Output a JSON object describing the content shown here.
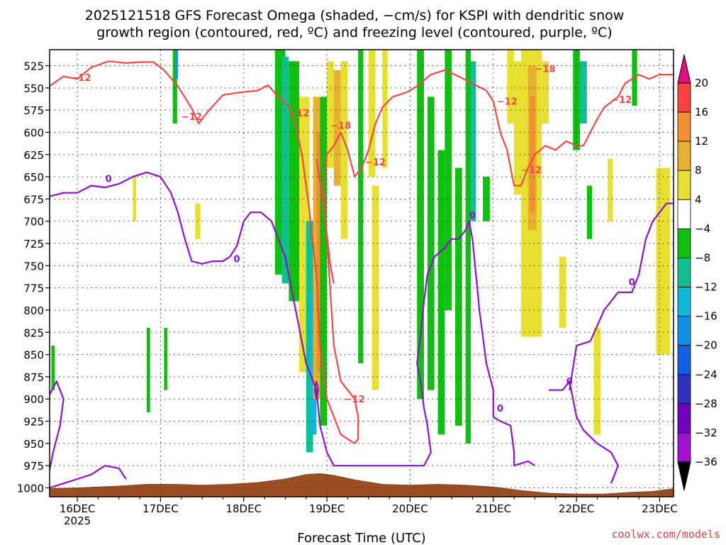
{
  "chart_data": {
    "type": "heatmap",
    "title_line1": "2025121518 GFS Forecast Omega (shaded, −cm/s) for KSPI with dendritic snow",
    "title_line2": "growth region (contoured, red, ºC) and freezing level (contoured, purple, ºC)",
    "xlabel": "Forecast Time (UTC)",
    "ylabel": "",
    "x_range_hours": [
      -8,
      172
    ],
    "x_ticks": [
      {
        "hour": 0,
        "label": "16DEC",
        "sub": "2025"
      },
      {
        "hour": 24,
        "label": "17DEC",
        "sub": ""
      },
      {
        "hour": 48,
        "label": "18DEC",
        "sub": ""
      },
      {
        "hour": 72,
        "label": "19DEC",
        "sub": ""
      },
      {
        "hour": 96,
        "label": "20DEC",
        "sub": ""
      },
      {
        "hour": 120,
        "label": "21DEC",
        "sub": ""
      },
      {
        "hour": 144,
        "label": "22DEC",
        "sub": ""
      },
      {
        "hour": 168,
        "label": "23DEC",
        "sub": ""
      }
    ],
    "y_range_hPa": [
      1010,
      507
    ],
    "y_ticks": [
      525,
      550,
      575,
      600,
      625,
      650,
      675,
      700,
      725,
      750,
      775,
      800,
      825,
      850,
      875,
      900,
      925,
      950,
      975,
      1000
    ],
    "colorbar": {
      "labels": [
        "20",
        "16",
        "12",
        "8",
        "4",
        "−4",
        "−8",
        "−12",
        "−16",
        "−20",
        "−24",
        "−28",
        "−32",
        "−36"
      ],
      "colors": [
        "#ff4040",
        "#f09030",
        "#e8b030",
        "#e8e030",
        "#ffffff",
        "#10c010",
        "#10c090",
        "#10b8d8",
        "#1090e8",
        "#1060e8",
        "#3030c0",
        "#7000c0",
        "#a010d0",
        "#a0a0a0"
      ],
      "top_color": "#e01080",
      "bottom_color": "#000000"
    },
    "omega_colors": {
      "w4": "#e8e030",
      "w8": "#e8b030",
      "w12": "#f09030",
      "c4": "#10c010",
      "c8": "#10c090",
      "c12": "#10b8d8",
      "c16": "#1090e8"
    },
    "omega_cells": [
      {
        "t0": 57,
        "t1": 60,
        "p0": 507,
        "p1": 760,
        "cls": "c4"
      },
      {
        "t0": 59,
        "t1": 61,
        "p0": 515,
        "p1": 770,
        "cls": "c8"
      },
      {
        "t0": 61,
        "t1": 64,
        "p0": 520,
        "p1": 790,
        "cls": "c4"
      },
      {
        "t0": 64,
        "t1": 67,
        "p0": 560,
        "p1": 870,
        "cls": "w4"
      },
      {
        "t0": 66,
        "t1": 68,
        "p0": 700,
        "p1": 960,
        "cls": "c8"
      },
      {
        "t0": 67,
        "t1": 69,
        "p0": 780,
        "p1": 940,
        "cls": "c12"
      },
      {
        "t0": 68,
        "t1": 70,
        "p0": 560,
        "p1": 900,
        "cls": "w8"
      },
      {
        "t0": 69,
        "t1": 70.5,
        "p0": 600,
        "p1": 870,
        "cls": "w12"
      },
      {
        "t0": 70,
        "t1": 72,
        "p0": 560,
        "p1": 930,
        "cls": "c4"
      },
      {
        "t0": 72,
        "t1": 74,
        "p0": 520,
        "p1": 640,
        "cls": "w4"
      },
      {
        "t0": 74,
        "t1": 76,
        "p0": 530,
        "p1": 660,
        "cls": "w8"
      },
      {
        "t0": 76,
        "t1": 78,
        "p0": 520,
        "p1": 720,
        "cls": "w4"
      },
      {
        "t0": 81,
        "t1": 82.5,
        "p0": 507,
        "p1": 860,
        "cls": "c4"
      },
      {
        "t0": 84,
        "t1": 86,
        "p0": 507,
        "p1": 650,
        "cls": "w4"
      },
      {
        "t0": 85,
        "t1": 87,
        "p0": 660,
        "p1": 890,
        "cls": "w4"
      },
      {
        "t0": 88,
        "t1": 89.5,
        "p0": 507,
        "p1": 640,
        "cls": "w4"
      },
      {
        "t0": 98,
        "t1": 100,
        "p0": 507,
        "p1": 900,
        "cls": "c4"
      },
      {
        "t0": 101,
        "t1": 103,
        "p0": 560,
        "p1": 890,
        "cls": "c4"
      },
      {
        "t0": 104,
        "t1": 106,
        "p0": 620,
        "p1": 940,
        "cls": "c4"
      },
      {
        "t0": 106,
        "t1": 108,
        "p0": 507,
        "p1": 800,
        "cls": "c4"
      },
      {
        "t0": 109,
        "t1": 111,
        "p0": 640,
        "p1": 930,
        "cls": "c4"
      },
      {
        "t0": 112,
        "t1": 113.5,
        "p0": 507,
        "p1": 950,
        "cls": "c4"
      },
      {
        "t0": 113.5,
        "t1": 115,
        "p0": 520,
        "p1": 700,
        "cls": "c8"
      },
      {
        "t0": 117,
        "t1": 119,
        "p0": 650,
        "p1": 700,
        "cls": "c4"
      },
      {
        "t0": 124,
        "t1": 126,
        "p0": 507,
        "p1": 590,
        "cls": "w4"
      },
      {
        "t0": 126,
        "t1": 128,
        "p0": 520,
        "p1": 670,
        "cls": "w4"
      },
      {
        "t0": 128,
        "t1": 134,
        "p0": 507,
        "p1": 830,
        "cls": "w4"
      },
      {
        "t0": 130,
        "t1": 132.5,
        "p0": 525,
        "p1": 710,
        "cls": "w8"
      },
      {
        "t0": 130.5,
        "t1": 132,
        "p0": 560,
        "p1": 690,
        "cls": "w12"
      },
      {
        "t0": 134,
        "t1": 136,
        "p0": 520,
        "p1": 590,
        "cls": "w4"
      },
      {
        "t0": 139,
        "t1": 141,
        "p0": 740,
        "p1": 820,
        "cls": "w4"
      },
      {
        "t0": 143,
        "t1": 145,
        "p0": 507,
        "p1": 620,
        "cls": "c4"
      },
      {
        "t0": 145,
        "t1": 147,
        "p0": 520,
        "p1": 590,
        "cls": "c8"
      },
      {
        "t0": 147,
        "t1": 148.5,
        "p0": 660,
        "p1": 720,
        "cls": "c4"
      },
      {
        "t0": 149,
        "t1": 151,
        "p0": 820,
        "p1": 940,
        "cls": "w4"
      },
      {
        "t0": 153,
        "t1": 154.5,
        "p0": 630,
        "p1": 700,
        "cls": "w4"
      },
      {
        "t0": 160,
        "t1": 161.5,
        "p0": 507,
        "p1": 570,
        "cls": "c4"
      },
      {
        "t0": 167,
        "t1": 171,
        "p0": 640,
        "p1": 850,
        "cls": "w4"
      },
      {
        "t0": 27.5,
        "t1": 28.8,
        "p0": 507,
        "p1": 590,
        "cls": "c4"
      },
      {
        "t0": 28.2,
        "t1": 29,
        "p0": 507,
        "p1": 540,
        "cls": "c16"
      },
      {
        "t0": 34,
        "t1": 35.5,
        "p0": 680,
        "p1": 720,
        "cls": "w4"
      },
      {
        "t0": 25,
        "t1": 26,
        "p0": 820,
        "p1": 890,
        "cls": "c4"
      },
      {
        "t0": 20,
        "t1": 21,
        "p0": 820,
        "p1": 915,
        "cls": "c4"
      },
      {
        "t0": 16,
        "t1": 17,
        "p0": 650,
        "p1": 700,
        "cls": "w4"
      },
      {
        "t0": -7.5,
        "t1": -6.5,
        "p0": 840,
        "p1": 890,
        "cls": "c4"
      }
    ],
    "dgz_minus12_contours": [
      [
        [
          -8,
          548
        ],
        [
          -4,
          537
        ],
        [
          0,
          540
        ],
        [
          4,
          527
        ],
        [
          9,
          520
        ],
        [
          14,
          522
        ],
        [
          18,
          521
        ],
        [
          22,
          521
        ],
        [
          25,
          530
        ],
        [
          29,
          548
        ],
        [
          33,
          573
        ],
        [
          35,
          590
        ],
        [
          38,
          575
        ],
        [
          42,
          558
        ],
        [
          47,
          555
        ],
        [
          52,
          553
        ],
        [
          55,
          547
        ],
        [
          58,
          560
        ],
        [
          61,
          570
        ],
        [
          63,
          590
        ],
        [
          65,
          630
        ],
        [
          67,
          690
        ],
        [
          69,
          760
        ],
        [
          70,
          840
        ],
        [
          72,
          900
        ],
        [
          76,
          940
        ],
        [
          80,
          950
        ],
        [
          81,
          945
        ],
        [
          81,
          920
        ],
        [
          80,
          900
        ],
        [
          76,
          880
        ],
        [
          74,
          840
        ],
        [
          73,
          780
        ],
        [
          72,
          720
        ],
        [
          71,
          660
        ],
        [
          72,
          625
        ],
        [
          74,
          615
        ],
        [
          76,
          600
        ],
        [
          78,
          620
        ],
        [
          80,
          650
        ],
        [
          82,
          640
        ],
        [
          84,
          620
        ],
        [
          86,
          590
        ],
        [
          88,
          572
        ],
        [
          91,
          560
        ],
        [
          95,
          555
        ],
        [
          98,
          548
        ],
        [
          102,
          535
        ],
        [
          106,
          530
        ],
        [
          110,
          537
        ],
        [
          114,
          545
        ],
        [
          118,
          553
        ],
        [
          120,
          565
        ],
        [
          122,
          600
        ],
        [
          124,
          620
        ],
        [
          126,
          660
        ],
        [
          128,
          660
        ],
        [
          130,
          640
        ],
        [
          132,
          625
        ],
        [
          135,
          615
        ],
        [
          138,
          620
        ],
        [
          141,
          610
        ],
        [
          144,
          615
        ],
        [
          146,
          615
        ],
        [
          148,
          600
        ],
        [
          150,
          585
        ],
        [
          152,
          572
        ],
        [
          156,
          560
        ],
        [
          158,
          545
        ],
        [
          162,
          535
        ],
        [
          165,
          540
        ],
        [
          168,
          535
        ],
        [
          172,
          535
        ]
      ],
      [
        [
          69,
          630
        ],
        [
          71,
          680
        ],
        [
          73,
          750
        ],
        [
          74,
          770
        ]
      ]
    ],
    "freezing_contours": [
      [
        [
          -8,
          672
        ],
        [
          -4,
          668
        ],
        [
          0,
          668
        ],
        [
          4,
          660
        ],
        [
          8,
          662
        ],
        [
          12,
          658
        ],
        [
          16,
          650
        ],
        [
          20,
          645
        ],
        [
          24,
          650
        ],
        [
          27,
          668
        ],
        [
          29,
          690
        ],
        [
          31,
          720
        ],
        [
          33,
          745
        ],
        [
          36,
          748
        ],
        [
          39,
          745
        ],
        [
          42,
          745
        ],
        [
          44,
          740
        ],
        [
          46,
          728
        ],
        [
          48,
          700
        ],
        [
          50,
          690
        ],
        [
          53,
          690
        ],
        [
          56,
          700
        ],
        [
          58,
          720
        ],
        [
          60,
          740
        ],
        [
          62,
          780
        ],
        [
          64,
          820
        ],
        [
          66,
          860
        ],
        [
          68,
          880
        ],
        [
          69,
          890
        ],
        [
          70,
          930
        ],
        [
          72,
          960
        ],
        [
          74,
          975
        ],
        [
          80,
          975
        ],
        [
          86,
          975
        ],
        [
          92,
          975
        ],
        [
          96,
          975
        ],
        [
          100,
          975
        ],
        [
          102,
          960
        ],
        [
          101,
          930
        ],
        [
          100,
          910
        ],
        [
          99,
          880
        ],
        [
          98,
          860
        ],
        [
          99,
          830
        ],
        [
          100,
          790
        ],
        [
          101,
          760
        ],
        [
          103,
          740
        ],
        [
          106,
          730
        ],
        [
          108,
          720
        ],
        [
          110,
          720
        ],
        [
          112,
          710
        ],
        [
          113,
          700
        ],
        [
          114,
          720
        ],
        [
          115,
          760
        ],
        [
          116,
          800
        ],
        [
          117,
          830
        ],
        [
          118,
          860
        ],
        [
          120,
          890
        ],
        [
          120,
          920
        ],
        [
          122,
          925
        ],
        [
          125,
          930
        ],
        [
          126,
          960
        ],
        [
          126,
          975
        ],
        [
          130,
          970
        ],
        [
          132,
          975
        ]
      ],
      [
        [
          -8,
          1000
        ],
        [
          -4,
          995
        ],
        [
          0,
          990
        ],
        [
          4,
          985
        ],
        [
          8,
          975
        ],
        [
          12,
          978
        ],
        [
          14,
          990
        ]
      ],
      [
        [
          -8,
          895
        ],
        [
          -6,
          880
        ],
        [
          -4,
          900
        ],
        [
          -5,
          930
        ],
        [
          -7,
          960
        ],
        [
          -8,
          980
        ]
      ],
      [
        [
          142,
          890
        ],
        [
          144,
          840
        ],
        [
          148,
          835
        ],
        [
          152,
          800
        ],
        [
          156,
          780
        ],
        [
          160,
          780
        ],
        [
          162,
          760
        ],
        [
          164,
          720
        ],
        [
          166,
          700
        ],
        [
          168,
          690
        ],
        [
          170,
          680
        ],
        [
          172,
          680
        ]
      ],
      [
        [
          136,
          890
        ],
        [
          140,
          890
        ],
        [
          142,
          880
        ],
        [
          144,
          920
        ],
        [
          146,
          935
        ],
        [
          150,
          950
        ],
        [
          154,
          960
        ],
        [
          156,
          975
        ],
        [
          154,
          995
        ]
      ],
      [
        [
          69,
          880
        ],
        [
          69.5,
          890
        ],
        [
          69,
          900
        ],
        [
          68.5,
          890
        ],
        [
          69,
          880
        ]
      ]
    ],
    "dgz_labels": [
      {
        "t": 1,
        "p": 538,
        "text": "−12"
      },
      {
        "t": 33,
        "p": 582,
        "text": "−12"
      },
      {
        "t": 64,
        "p": 578,
        "text": "−12"
      },
      {
        "t": 76,
        "p": 592,
        "text": "−18"
      },
      {
        "t": 86,
        "p": 633,
        "text": "−12"
      },
      {
        "t": 124,
        "p": 565,
        "text": "−12"
      },
      {
        "t": 135,
        "p": 528,
        "text": "−18"
      },
      {
        "t": 131,
        "p": 642,
        "text": "−12"
      },
      {
        "t": 157,
        "p": 563,
        "text": "−12"
      },
      {
        "t": 80,
        "p": 900,
        "text": "−12"
      }
    ],
    "freezing_labels": [
      {
        "t": 9,
        "p": 652,
        "text": "0"
      },
      {
        "t": 46,
        "p": 742,
        "text": "0"
      },
      {
        "t": 114,
        "p": 693,
        "text": "0"
      },
      {
        "t": 122,
        "p": 910,
        "text": "0"
      },
      {
        "t": 160,
        "p": 768,
        "text": "0"
      },
      {
        "t": 142,
        "p": 880,
        "text": "0"
      }
    ],
    "surface_pressure": [
      [
        -8,
        1001
      ],
      [
        0,
        1000
      ],
      [
        12,
        998
      ],
      [
        20,
        996
      ],
      [
        28,
        996
      ],
      [
        36,
        997
      ],
      [
        44,
        996
      ],
      [
        52,
        994
      ],
      [
        60,
        990
      ],
      [
        66,
        985
      ],
      [
        70,
        984
      ],
      [
        74,
        986
      ],
      [
        80,
        991
      ],
      [
        88,
        996
      ],
      [
        96,
        997
      ],
      [
        104,
        996
      ],
      [
        112,
        997
      ],
      [
        120,
        999
      ],
      [
        128,
        1003
      ],
      [
        136,
        1006
      ],
      [
        144,
        1007
      ],
      [
        152,
        1007
      ],
      [
        160,
        1005
      ],
      [
        166,
        1004
      ],
      [
        172,
        1001
      ]
    ],
    "credit": "coolwx.com/models"
  }
}
